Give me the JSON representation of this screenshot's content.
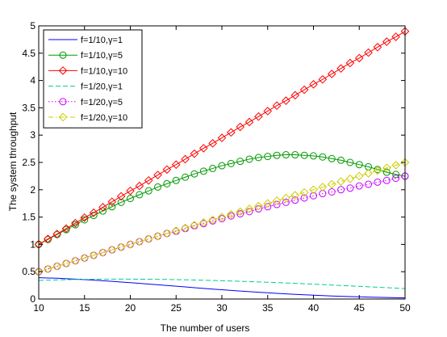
{
  "chart_data": {
    "type": "line",
    "title": "",
    "xlabel": "The number of users",
    "ylabel": "The system throughput",
    "xlim": [
      10,
      50
    ],
    "ylim": [
      0,
      5
    ],
    "xticks": [
      10,
      15,
      20,
      25,
      30,
      35,
      40,
      45,
      50
    ],
    "yticks": [
      0,
      0.5,
      1,
      1.5,
      2,
      2.5,
      3,
      3.5,
      4,
      4.5,
      5
    ],
    "ytick_labels": [
      "0",
      "0.5",
      "1",
      "1.5",
      "2",
      "2.5",
      "3",
      "3.5",
      "4",
      "4.5",
      "5"
    ],
    "grid": false,
    "legend_position": "top-left",
    "x": [
      10,
      11,
      12,
      13,
      14,
      15,
      16,
      17,
      18,
      19,
      20,
      21,
      22,
      23,
      24,
      25,
      26,
      27,
      28,
      29,
      30,
      31,
      32,
      33,
      34,
      35,
      36,
      37,
      38,
      39,
      40,
      41,
      42,
      43,
      44,
      45,
      46,
      47,
      48,
      49,
      50
    ],
    "series": [
      {
        "name": "f=1/10,γ=1",
        "color": "#0000ff",
        "line": "solid",
        "marker": "none",
        "values": [
          0.39,
          0.385,
          0.38,
          0.372,
          0.364,
          0.355,
          0.345,
          0.334,
          0.323,
          0.311,
          0.299,
          0.286,
          0.273,
          0.26,
          0.247,
          0.234,
          0.221,
          0.208,
          0.195,
          0.182,
          0.17,
          0.158,
          0.146,
          0.135,
          0.124,
          0.114,
          0.104,
          0.095,
          0.086,
          0.078,
          0.07,
          0.063,
          0.056,
          0.05,
          0.045,
          0.04,
          0.035,
          0.031,
          0.027,
          0.024,
          0.02
        ]
      },
      {
        "name": "f=1/10,γ=5",
        "color": "#009900",
        "line": "solid",
        "marker": "circle",
        "values": [
          1.0,
          1.09,
          1.18,
          1.27,
          1.36,
          1.45,
          1.53,
          1.61,
          1.69,
          1.77,
          1.84,
          1.91,
          1.98,
          2.05,
          2.11,
          2.17,
          2.23,
          2.29,
          2.34,
          2.39,
          2.44,
          2.48,
          2.52,
          2.56,
          2.59,
          2.61,
          2.63,
          2.64,
          2.64,
          2.63,
          2.62,
          2.6,
          2.57,
          2.54,
          2.5,
          2.46,
          2.42,
          2.37,
          2.32,
          2.28,
          2.25
        ]
      },
      {
        "name": "f=1/10,γ=10",
        "color": "#ff0000",
        "line": "solid",
        "marker": "diamond",
        "values": [
          1.0,
          1.1,
          1.19,
          1.29,
          1.39,
          1.49,
          1.58,
          1.68,
          1.78,
          1.88,
          1.98,
          2.07,
          2.17,
          2.27,
          2.37,
          2.46,
          2.56,
          2.66,
          2.76,
          2.85,
          2.95,
          3.05,
          3.15,
          3.24,
          3.34,
          3.44,
          3.54,
          3.63,
          3.73,
          3.83,
          3.93,
          4.02,
          4.12,
          4.22,
          4.32,
          4.41,
          4.51,
          4.61,
          4.71,
          4.8,
          4.9
        ]
      },
      {
        "name": "f=1/20,γ=1",
        "color": "#00cc99",
        "line": "dashed",
        "marker": "none",
        "values": [
          0.34,
          0.345,
          0.35,
          0.354,
          0.357,
          0.36,
          0.362,
          0.363,
          0.364,
          0.364,
          0.364,
          0.363,
          0.362,
          0.36,
          0.358,
          0.355,
          0.352,
          0.348,
          0.344,
          0.34,
          0.335,
          0.33,
          0.325,
          0.319,
          0.313,
          0.307,
          0.3,
          0.294,
          0.287,
          0.279,
          0.272,
          0.264,
          0.256,
          0.248,
          0.24,
          0.232,
          0.224,
          0.216,
          0.208,
          0.2,
          0.19
        ]
      },
      {
        "name": "f=1/20,γ=5",
        "color": "#cc00ff",
        "line": "dotted",
        "marker": "circle",
        "values": [
          0.5,
          0.55,
          0.6,
          0.65,
          0.7,
          0.75,
          0.8,
          0.85,
          0.9,
          0.95,
          1.0,
          1.05,
          1.1,
          1.15,
          1.2,
          1.24,
          1.29,
          1.34,
          1.38,
          1.43,
          1.47,
          1.52,
          1.56,
          1.6,
          1.65,
          1.69,
          1.73,
          1.77,
          1.81,
          1.85,
          1.89,
          1.93,
          1.96,
          2.0,
          2.03,
          2.07,
          2.1,
          2.14,
          2.17,
          2.21,
          2.25
        ]
      },
      {
        "name": "f=1/20,γ=10",
        "color": "#cccc00",
        "line": "dashdot",
        "marker": "diamond",
        "values": [
          0.5,
          0.55,
          0.6,
          0.65,
          0.7,
          0.75,
          0.8,
          0.85,
          0.9,
          0.95,
          1.0,
          1.05,
          1.1,
          1.15,
          1.2,
          1.25,
          1.3,
          1.35,
          1.4,
          1.45,
          1.5,
          1.55,
          1.6,
          1.65,
          1.7,
          1.75,
          1.8,
          1.85,
          1.9,
          1.95,
          2.0,
          2.05,
          2.1,
          2.15,
          2.2,
          2.25,
          2.3,
          2.35,
          2.4,
          2.45,
          2.5
        ]
      }
    ]
  }
}
